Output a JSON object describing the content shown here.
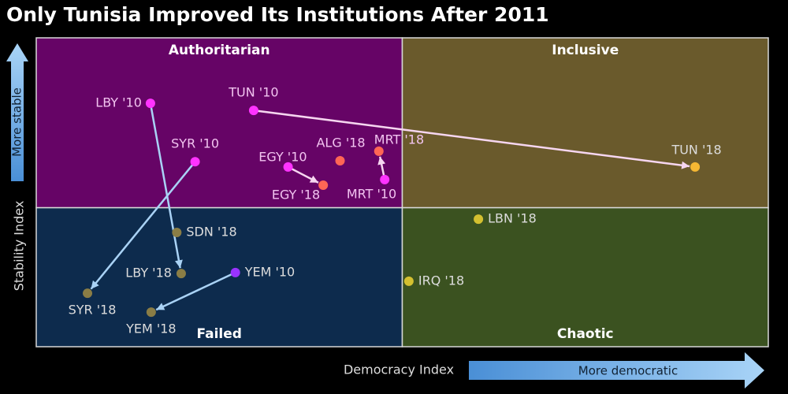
{
  "chart_data": {
    "type": "scatter",
    "title": "Only Tunisia Improved Its Institutions After 2011",
    "xlabel": "Democracy Index",
    "ylabel": "Stability Index",
    "x_arrow_label": "More democratic",
    "y_arrow_label": "More stable",
    "xlim": [
      0,
      100
    ],
    "ylim": [
      0,
      100
    ],
    "xsplit": 50,
    "ysplit": 45,
    "quadrants": [
      {
        "label": "Authoritarian",
        "color": "#660466"
      },
      {
        "label": "Inclusive",
        "color": "#6a5a2c"
      },
      {
        "label": "Failed",
        "color": "#0d2b4d"
      },
      {
        "label": "Chaotic",
        "color": "#3b5220"
      }
    ],
    "points": [
      {
        "label": "LBY '10",
        "x": 15.6,
        "y": 78.8,
        "color": "#ff33ff"
      },
      {
        "label": "TUN '10",
        "x": 29.7,
        "y": 76.5,
        "color": "#ff33ff"
      },
      {
        "label": "SYR '10",
        "x": 21.7,
        "y": 59.9,
        "color": "#ff33ff"
      },
      {
        "label": "EGY '10",
        "x": 34.4,
        "y": 58.2,
        "color": "#ff33ff"
      },
      {
        "label": "EGY '18",
        "x": 39.2,
        "y": 52.3,
        "color": "#ff6655"
      },
      {
        "label": "ALG '18",
        "x": 41.5,
        "y": 60.2,
        "color": "#ff6655"
      },
      {
        "label": "MRT '18",
        "x": 46.8,
        "y": 63.3,
        "color": "#ff6655"
      },
      {
        "label": "MRT '10",
        "x": 47.6,
        "y": 54.1,
        "color": "#ff33ff"
      },
      {
        "label": "TUN '18",
        "x": 90.0,
        "y": 58.2,
        "color": "#f5b733"
      },
      {
        "label": "LBN '18",
        "x": 60.4,
        "y": 41.3,
        "color": "#d4c030"
      },
      {
        "label": "IRQ '18",
        "x": 50.9,
        "y": 21.2,
        "color": "#d4c030"
      },
      {
        "label": "SDN '18",
        "x": 19.2,
        "y": 37.0,
        "color": "#8a7d45"
      },
      {
        "label": "LBY '18",
        "x": 19.8,
        "y": 23.7,
        "color": "#8a7d45"
      },
      {
        "label": "YEM '10",
        "x": 27.2,
        "y": 24.0,
        "color": "#9933ff"
      },
      {
        "label": "SYR '18",
        "x": 7.0,
        "y": 17.3,
        "color": "#8a7d45"
      },
      {
        "label": "YEM '18",
        "x": 15.7,
        "y": 11.2,
        "color": "#8a7d45"
      }
    ],
    "arrows": [
      {
        "from": 0,
        "to": 12,
        "color": "#a9d2f5"
      },
      {
        "from": 1,
        "to": 8,
        "color": "#f6d6f0"
      },
      {
        "from": 2,
        "to": 14,
        "color": "#a9d2f5"
      },
      {
        "from": 3,
        "to": 4,
        "color": "#f6d6f0"
      },
      {
        "from": 7,
        "to": 6,
        "color": "#f6d6f0"
      },
      {
        "from": 13,
        "to": 15,
        "color": "#a9d2f5"
      }
    ]
  }
}
